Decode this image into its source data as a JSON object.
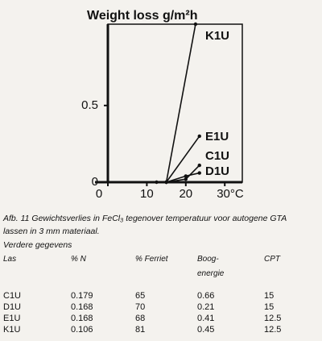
{
  "chart_data": {
    "type": "line",
    "title": "Weight loss g/m²h",
    "series": [
      {
        "name": "K1U",
        "color": "#111111",
        "x": [
          15,
          22.5
        ],
        "values": [
          0,
          1.03
        ]
      },
      {
        "name": "E1U",
        "color": "#111111",
        "x": [
          15,
          23.5
        ],
        "values": [
          0,
          0.3
        ]
      },
      {
        "name": "C1U",
        "color": "#111111",
        "x": [
          15,
          20,
          23.5
        ],
        "values": [
          0,
          0.02,
          0.11
        ]
      },
      {
        "name": "D1U",
        "color": "#111111",
        "x": [
          12.5,
          15,
          20,
          23.5
        ],
        "values": [
          0,
          0,
          0.04,
          0.06
        ]
      }
    ],
    "xlim": [
      0,
      34.5
    ],
    "ylim": [
      0,
      1.03
    ],
    "xticks": [
      0,
      10,
      20,
      {
        "value": 30,
        "label": "30°C"
      }
    ],
    "yticks": [
      0,
      0.5
    ]
  },
  "caption": "Afb. 11 Gewichtsverlies in FeCl₃ tegenover temperatuur voor autogene GTA lassen in 3 mm materiaal.",
  "subheading": "Verdere gegevens",
  "table": {
    "header": [
      "Las",
      "% N",
      "% Ferriet",
      "Boog-\nenergie",
      "CPT"
    ],
    "rows": [
      [
        "C1U",
        "0.179",
        "65",
        "0.66",
        "15"
      ],
      [
        "D1U",
        "0.168",
        "70",
        "0.21",
        "15"
      ],
      [
        "E1U",
        "0.168",
        "68",
        "0.41",
        "12.5"
      ],
      [
        "K1U",
        "0.106",
        "81",
        "0.45",
        "12.5"
      ]
    ]
  }
}
